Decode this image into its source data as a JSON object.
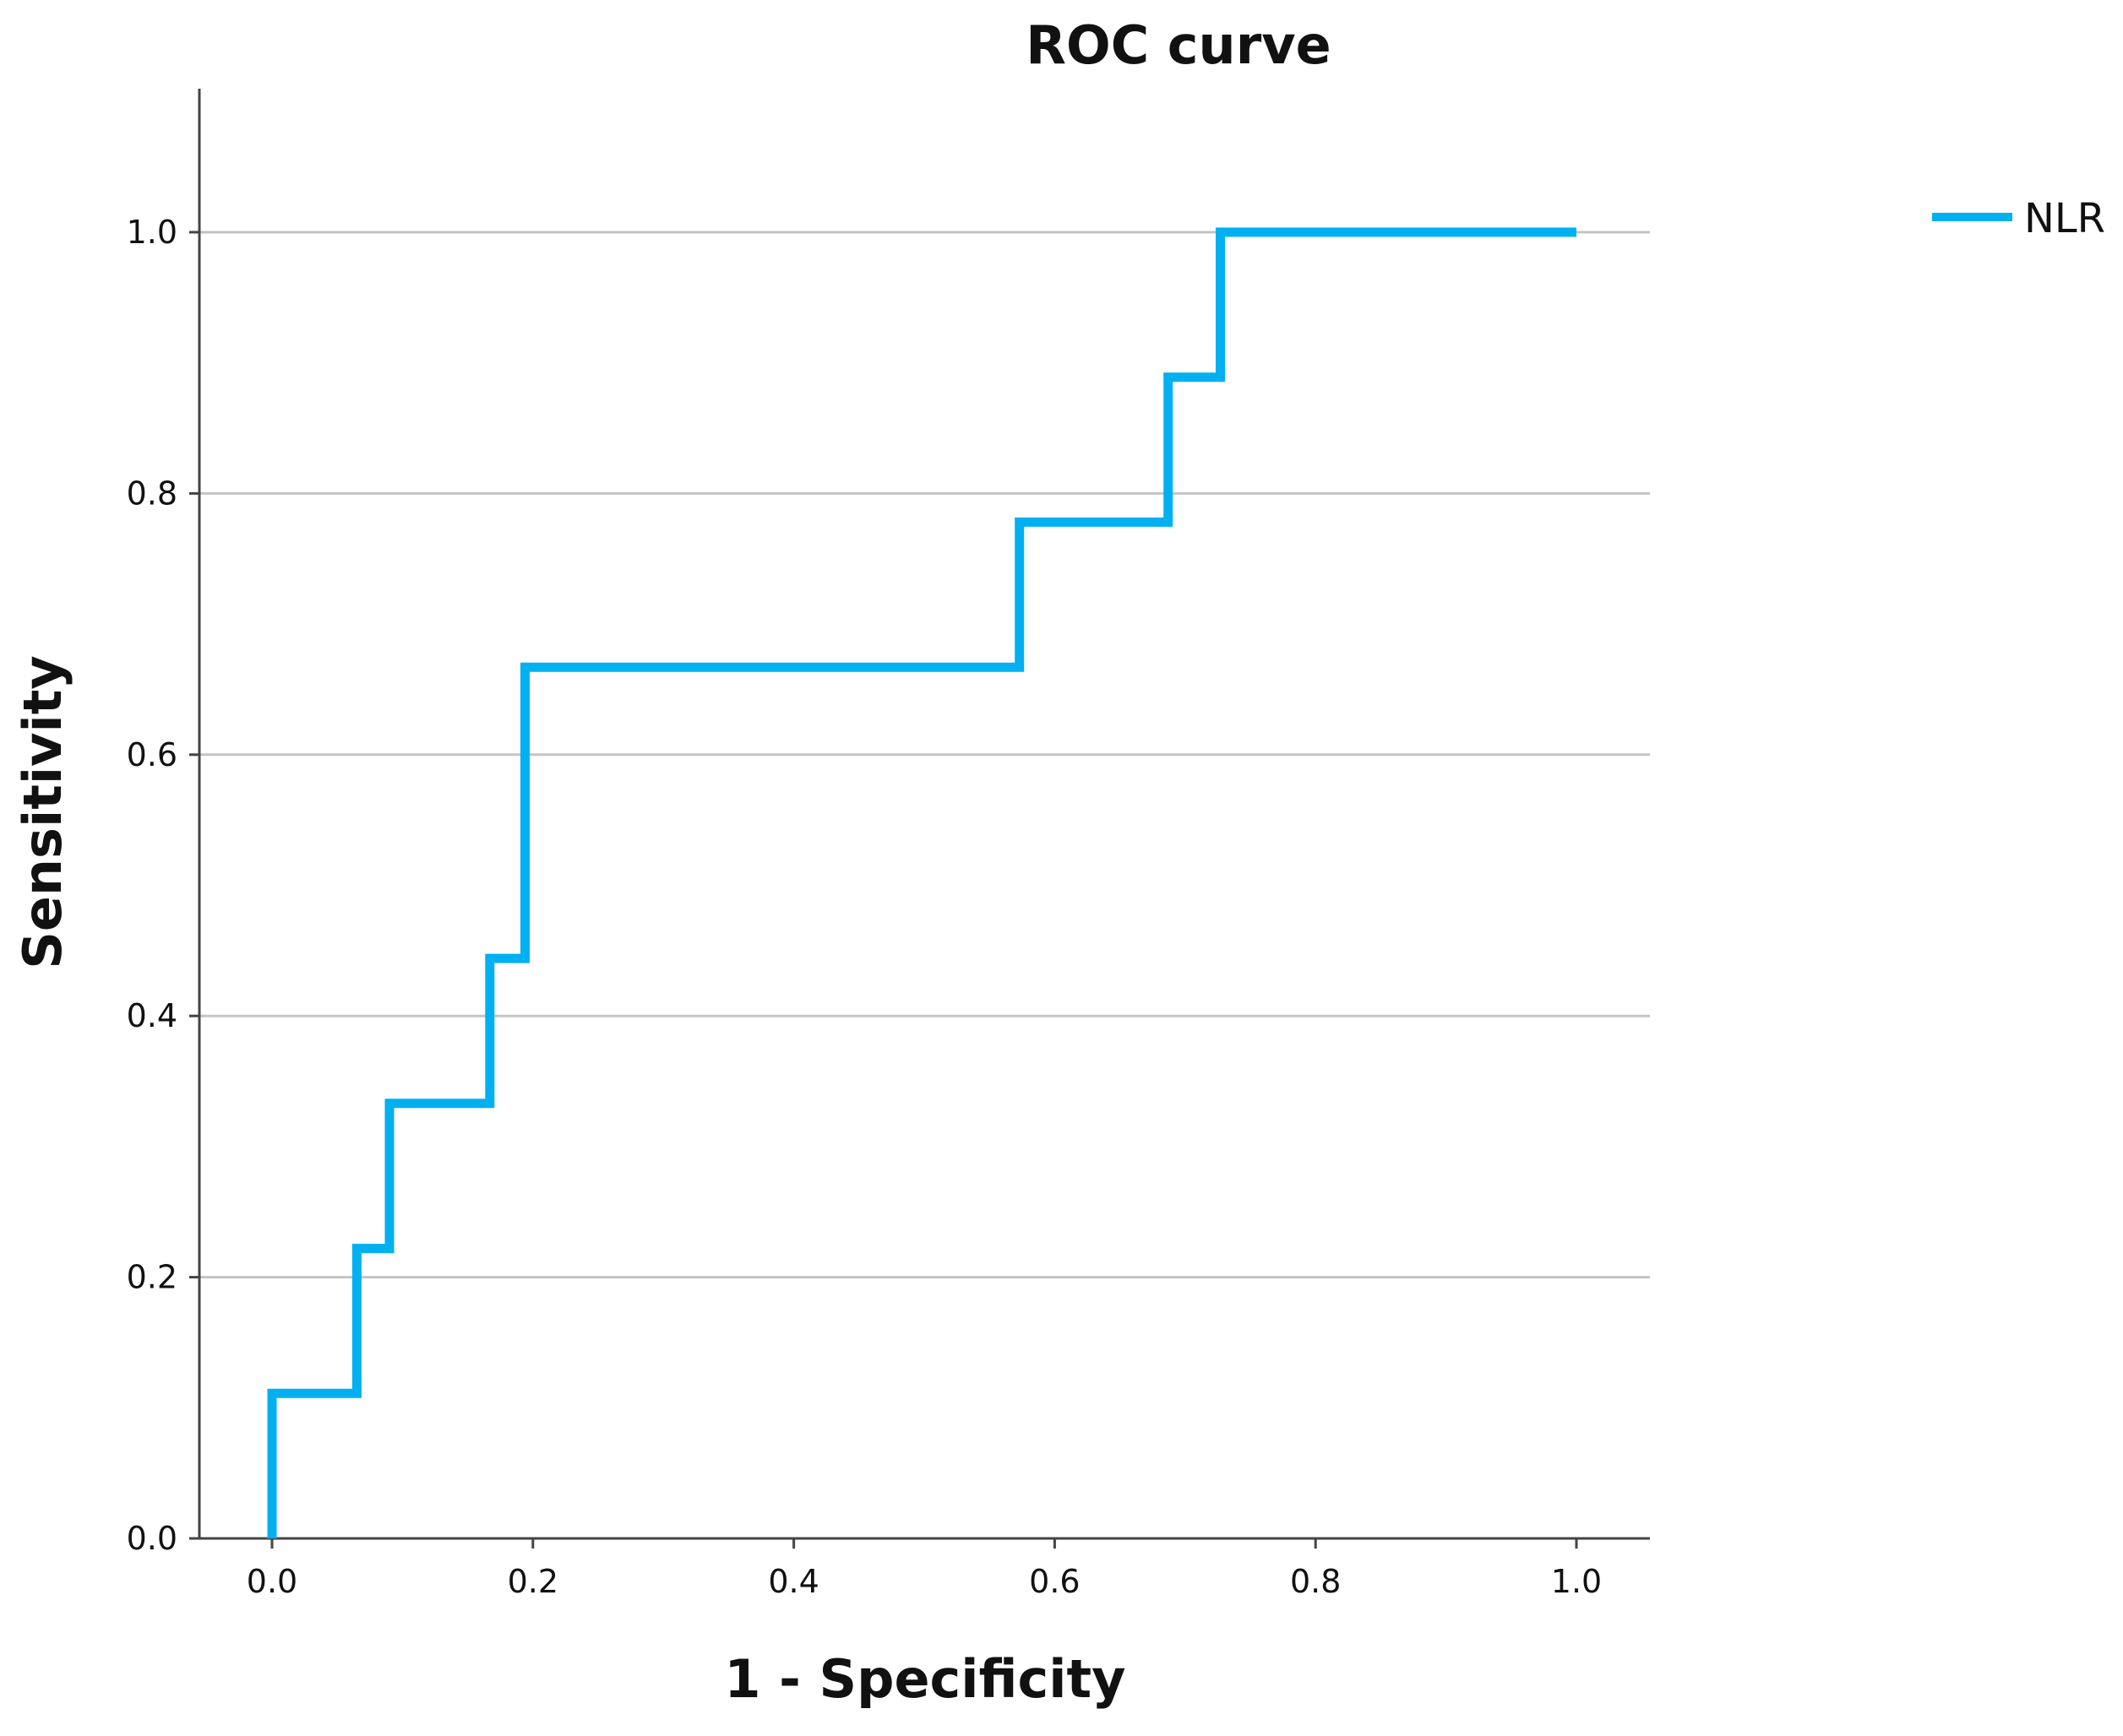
{
  "chart_data": {
    "type": "line",
    "title": "ROC curve",
    "xlabel": "1 - Specificity",
    "ylabel": "Sensitivity",
    "xlim": [
      0,
      1
    ],
    "ylim": [
      0,
      1.1
    ],
    "x_ticks": [
      0.0,
      0.2,
      0.4,
      0.6,
      0.8,
      1.0
    ],
    "x_tick_labels": [
      "0.0",
      "0.2",
      "0.4",
      "0.6",
      "0.8",
      "1.0"
    ],
    "y_ticks": [
      0.0,
      0.2,
      0.4,
      0.6,
      0.8,
      1.0
    ],
    "y_tick_labels": [
      "0.0",
      "0.2",
      "0.4",
      "0.6",
      "0.8",
      "1.0"
    ],
    "grid": "horizontal",
    "legend_position": "top-right",
    "series": [
      {
        "name": "NLR",
        "color": "#00b0f0",
        "points": [
          [
            0.0,
            0.0
          ],
          [
            0.0,
            0.111
          ],
          [
            0.065,
            0.111
          ],
          [
            0.065,
            0.222
          ],
          [
            0.09,
            0.222
          ],
          [
            0.09,
            0.333
          ],
          [
            0.167,
            0.333
          ],
          [
            0.167,
            0.444
          ],
          [
            0.194,
            0.444
          ],
          [
            0.194,
            0.667
          ],
          [
            0.573,
            0.667
          ],
          [
            0.573,
            0.778
          ],
          [
            0.687,
            0.778
          ],
          [
            0.687,
            0.889
          ],
          [
            0.727,
            0.889
          ],
          [
            0.727,
            1.0
          ],
          [
            1.0,
            1.0
          ]
        ]
      }
    ]
  }
}
